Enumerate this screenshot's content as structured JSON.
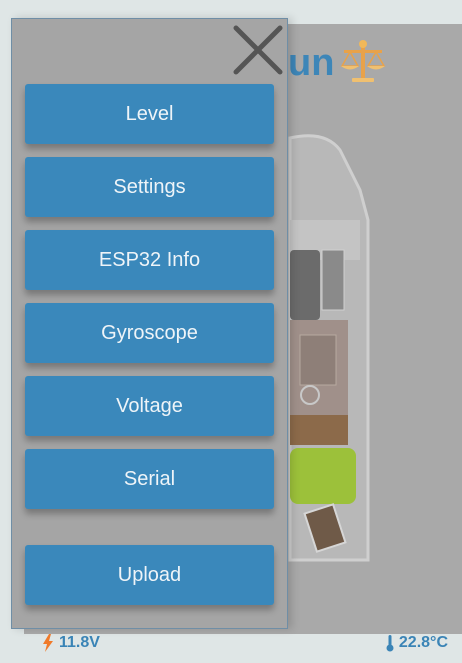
{
  "app": {
    "title_fragment": "un"
  },
  "menu": {
    "items": [
      {
        "label": "Level"
      },
      {
        "label": "Settings"
      },
      {
        "label": "ESP32 Info"
      },
      {
        "label": "Gyroscope"
      },
      {
        "label": "Voltage"
      },
      {
        "label": "Serial"
      },
      {
        "label": "Upload"
      }
    ],
    "close_icon": "close-icon"
  },
  "status": {
    "voltage": "11.8V",
    "voltage_icon": "lightning-icon",
    "temperature": "22.8°C",
    "temperature_icon": "thermometer-icon"
  },
  "colors": {
    "accent": "#3a88bb",
    "menu_bg": "#a5a5a5",
    "status_text": "#3a84b6",
    "lightning": "#f07a2a",
    "van_highlight": "#9cc13a"
  }
}
